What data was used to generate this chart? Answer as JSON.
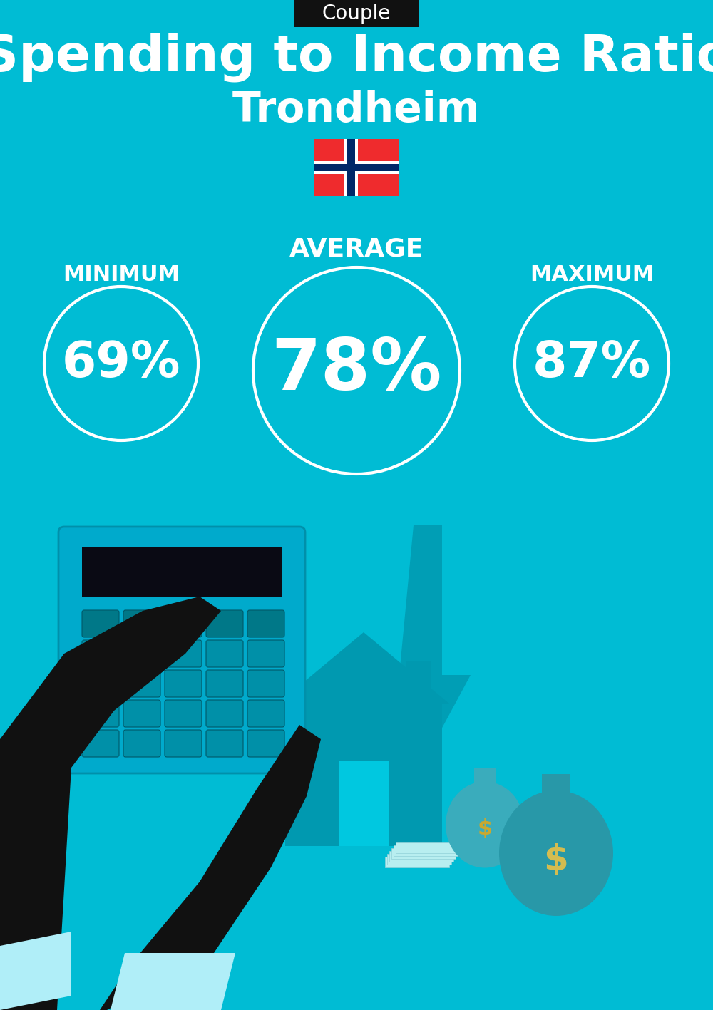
{
  "title_main": "Spending to Income Ratio",
  "title_city": "Trondheim",
  "label_badge": "Couple",
  "label_min": "MINIMUM",
  "label_avg": "AVERAGE",
  "label_max": "MAXIMUM",
  "value_min": "69%",
  "value_avg": "78%",
  "value_max": "87%",
  "bg_color": "#00BCD4",
  "text_color": "white",
  "badge_bg": "#111111",
  "badge_text": "white",
  "circle_linewidth": 3.0,
  "fig_width": 10.0,
  "fig_height": 14.17,
  "norway_flag_red": "#EF2B2D",
  "norway_flag_blue": "#002868",
  "norway_flag_white": "#FFFFFF",
  "dark_teal": "#00A8BC",
  "med_teal": "#009AB0",
  "light_teal": "#B0EEF8"
}
